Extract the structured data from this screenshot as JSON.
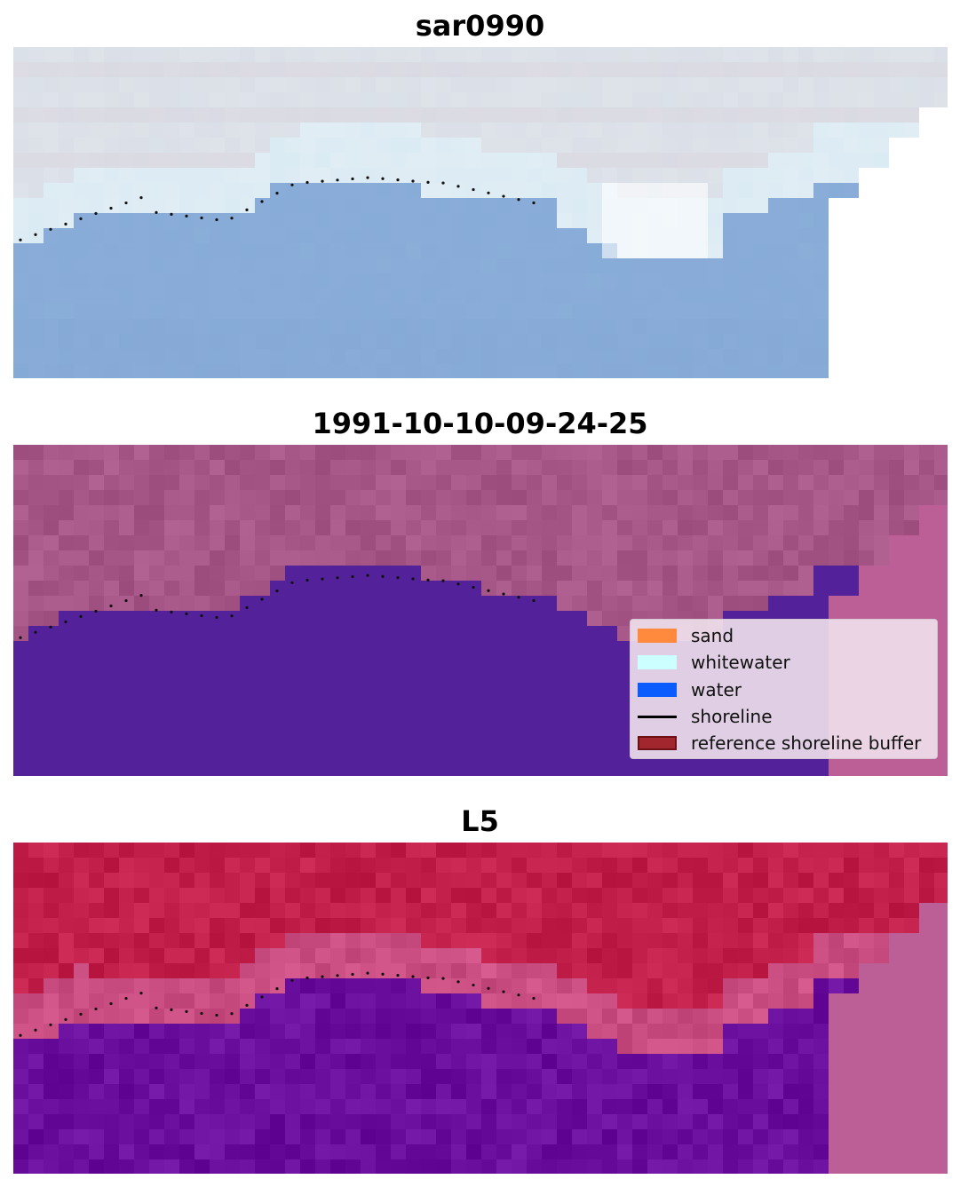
{
  "panels": [
    {
      "id": "rgb",
      "title": "sar0990"
    },
    {
      "id": "classified",
      "title": "1991-10-10-09-24-25"
    },
    {
      "id": "index",
      "title": "L5"
    }
  ],
  "legend": {
    "items": [
      {
        "label": "sand",
        "color": "#ff8a3d",
        "kind": "patch"
      },
      {
        "label": "whitewater",
        "color": "#ccffff",
        "kind": "patch"
      },
      {
        "label": "water",
        "color": "#0a5cff",
        "kind": "patch"
      },
      {
        "label": "shoreline",
        "color": "#000000",
        "kind": "line"
      },
      {
        "label": "reference shoreline buffer",
        "color": "#a1262e",
        "edge": "#6e1016",
        "kind": "patch"
      }
    ]
  },
  "colors": {
    "rgb_top": "#cfd6e0",
    "rgb_water": "#86a9d6",
    "classified_land": "#a65687",
    "classified_water": "#53229a",
    "nodata": "#bd5f97",
    "index_land": "#c2204a",
    "index_water": "#6a0f9d",
    "shoreline_dots": "#111111"
  }
}
